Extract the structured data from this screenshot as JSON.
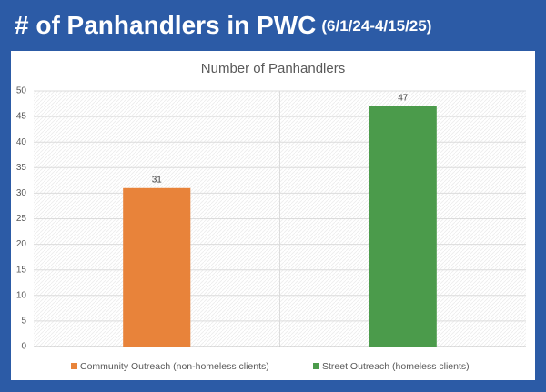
{
  "header": {
    "title": "# of Panhandlers in PWC",
    "subtitle": "(6/1/24-4/15/25)"
  },
  "chart_data": {
    "type": "bar",
    "title": "Number of Panhandlers",
    "categories": [
      "Community Outreach (non-homeless clients)",
      "Street Outreach (homeless clients)"
    ],
    "values": [
      31,
      47
    ],
    "colors": [
      "#e8833a",
      "#4b9b4b"
    ],
    "ylim": [
      0,
      50
    ],
    "yticks": [
      0,
      5,
      10,
      15,
      20,
      25,
      30,
      35,
      40,
      45,
      50
    ],
    "grid": true,
    "legend": "bottom"
  }
}
